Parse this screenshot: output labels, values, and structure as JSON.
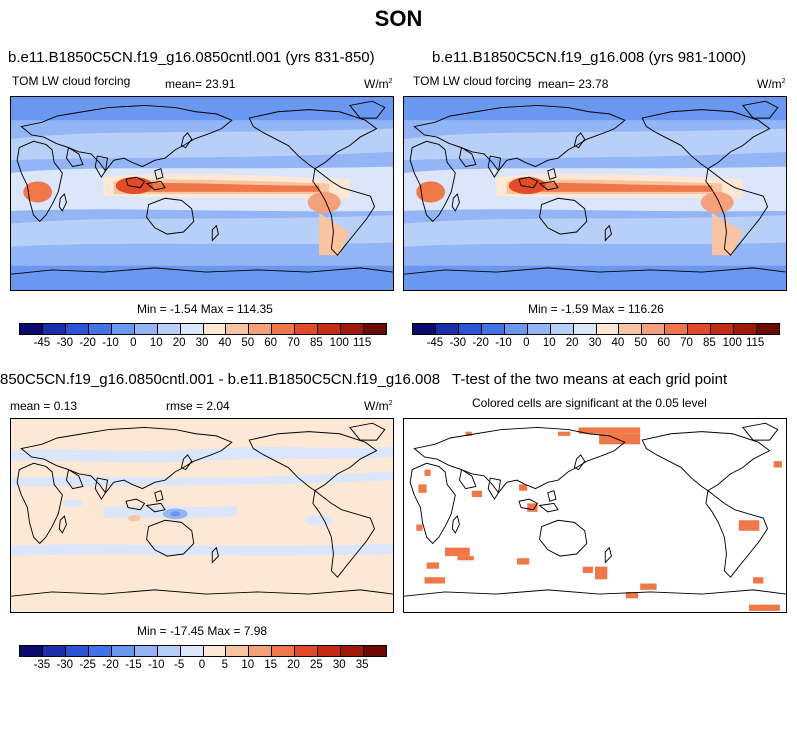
{
  "figure": {
    "title": "SON"
  },
  "panels": {
    "top_left": {
      "title": "b.e11.B1850C5CN.f19_g16.0850cntl.001 (yrs 831-850)",
      "left_label": "TOM LW cloud forcing",
      "mean_label": "mean=  23.91",
      "units": "W/m",
      "units_sup": "2",
      "minmax": "Min =  -1.54 Max = 114.35"
    },
    "top_right": {
      "title": "b.e11.B1850C5CN.f19_g16.008 (yrs 981-1000)",
      "left_label": "TOM LW cloud forcing",
      "mean_label": "mean=  23.78",
      "units": "W/m",
      "units_sup": "2",
      "minmax": "Min =  -1.59 Max = 116.26"
    },
    "bottom_left": {
      "title": "850C5CN.f19_g16.0850cntl.001 - b.e11.B1850C5CN.f19_g16.008",
      "mean_label": "mean =   0.13",
      "rmse_label": "rmse =   2.04",
      "units": "W/m",
      "units_sup": "2",
      "minmax": "Min = -17.45 Max =   7.98"
    },
    "bottom_right": {
      "title": "T-test of the two means at each grid point",
      "subtitle": "Colored cells are significant at the 0.05 level"
    }
  },
  "colorbar_fields": {
    "labels": [
      "-45",
      "-30",
      "-20",
      "-10",
      "0",
      "10",
      "20",
      "30",
      "40",
      "50",
      "60",
      "70",
      "85",
      "100",
      "115"
    ],
    "colors": [
      "#0b0b6e",
      "#1a2fa8",
      "#2a53d6",
      "#4274e6",
      "#6a98f0",
      "#93b5f5",
      "#b8cff8",
      "#dbe6fb",
      "#fde8d6",
      "#f8c4a2",
      "#f4a07a",
      "#f07848",
      "#e24b28",
      "#c62d16",
      "#a01a0c",
      "#6e0a04"
    ]
  },
  "colorbar_diff": {
    "labels": [
      "-35",
      "-30",
      "-25",
      "-20",
      "-15",
      "-10",
      "-5",
      "0",
      "5",
      "10",
      "15",
      "20",
      "25",
      "30",
      "35"
    ],
    "colors": [
      "#0b0b6e",
      "#1a2fa8",
      "#2a53d6",
      "#4274e6",
      "#6a98f0",
      "#93b5f5",
      "#b8cff8",
      "#dbe6fb",
      "#fde8d6",
      "#f8c4a2",
      "#f4a07a",
      "#f07848",
      "#e24b28",
      "#c62d16",
      "#a01a0c",
      "#6e0a04"
    ]
  }
}
